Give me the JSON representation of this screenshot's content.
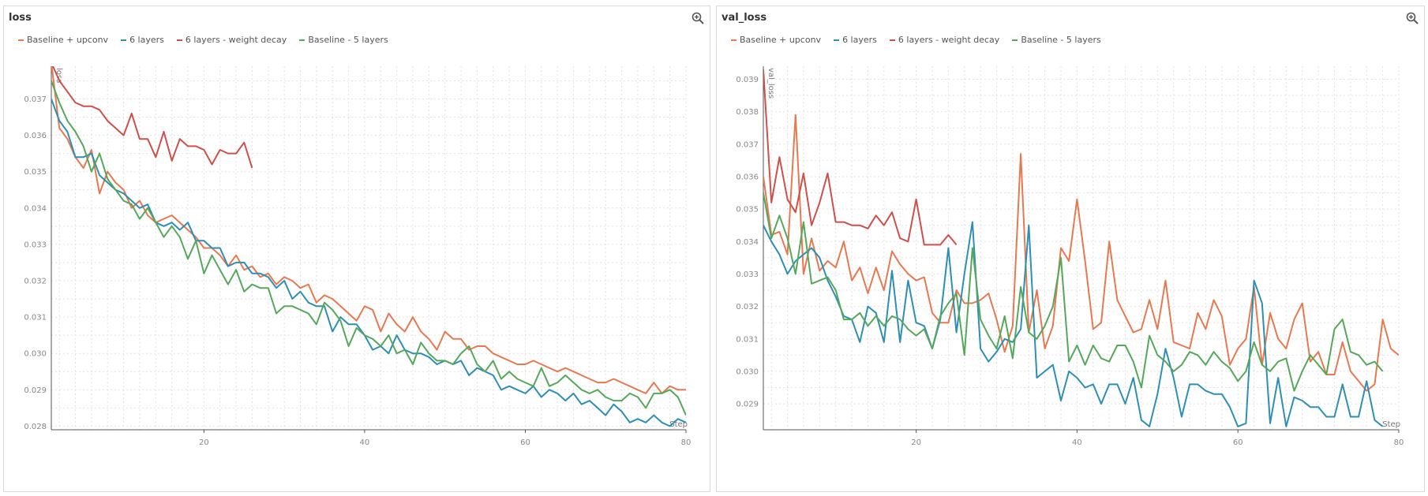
{
  "colors": {
    "baseline_upconv": "#e8784f",
    "six_layers": "#2d8fb4",
    "six_layers_wd": "#cf4f4a",
    "baseline_5": "#55a85a",
    "grid": "#e2e2e2",
    "axis": "#555555"
  },
  "icons": {
    "zoom": "zoom-in-icon"
  },
  "chart_data": [
    {
      "type": "line",
      "title": "loss",
      "ylabel": "loss",
      "xlabel": "Step",
      "xlim": [
        1,
        80
      ],
      "ylim": [
        0.0279,
        0.0379
      ],
      "xticks": [
        20,
        40,
        60,
        80
      ],
      "xtick_labels": [
        "20",
        "40",
        "60",
        "80"
      ],
      "yticks": [
        0.028,
        0.029,
        0.03,
        0.031,
        0.032,
        0.033,
        0.034,
        0.035,
        0.036,
        0.037
      ],
      "ytick_labels": [
        "0.028",
        "0.029",
        "0.030",
        "0.031",
        "0.032",
        "0.033",
        "0.034",
        "0.035",
        "0.036",
        "0.037"
      ],
      "series": [
        {
          "name": "Baseline + upconv",
          "color": "#e8784f",
          "x_start": 1,
          "values": [
            0.038,
            0.0362,
            0.0359,
            0.0354,
            0.0351,
            0.0356,
            0.0344,
            0.035,
            0.0347,
            0.0345,
            0.034,
            0.0342,
            0.0338,
            0.0336,
            0.0337,
            0.0338,
            0.0336,
            0.0334,
            0.0332,
            0.0329,
            0.0329,
            0.0327,
            0.0324,
            0.0327,
            0.0323,
            0.0324,
            0.0321,
            0.0322,
            0.0319,
            0.0321,
            0.032,
            0.0318,
            0.0319,
            0.0314,
            0.0316,
            0.0315,
            0.0313,
            0.0311,
            0.0309,
            0.0313,
            0.0312,
            0.0306,
            0.0311,
            0.0308,
            0.0306,
            0.031,
            0.0306,
            0.0304,
            0.0301,
            0.0306,
            0.0304,
            0.0304,
            0.0301,
            0.0302,
            0.0302,
            0.03,
            0.0299,
            0.0298,
            0.0297,
            0.0297,
            0.0298,
            0.0297,
            0.0296,
            0.0295,
            0.0296,
            0.0295,
            0.0294,
            0.0293,
            0.0292,
            0.0292,
            0.0293,
            0.0292,
            0.0291,
            0.029,
            0.0289,
            0.0292,
            0.0289,
            0.0291,
            0.029,
            0.029
          ]
        },
        {
          "name": "6 layers",
          "color": "#2d8fb4",
          "x_start": 1,
          "values": [
            0.037,
            0.0364,
            0.0361,
            0.0354,
            0.0354,
            0.0355,
            0.0349,
            0.0347,
            0.0345,
            0.0344,
            0.0342,
            0.034,
            0.0341,
            0.0336,
            0.0335,
            0.0336,
            0.0334,
            0.0336,
            0.0331,
            0.0331,
            0.0329,
            0.0329,
            0.0324,
            0.0325,
            0.0325,
            0.0322,
            0.0322,
            0.0321,
            0.0318,
            0.032,
            0.0315,
            0.0317,
            0.0314,
            0.0313,
            0.0313,
            0.0306,
            0.031,
            0.0308,
            0.0308,
            0.0305,
            0.0301,
            0.0302,
            0.03,
            0.0305,
            0.0301,
            0.03,
            0.03,
            0.0299,
            0.0297,
            0.0298,
            0.0297,
            0.0298,
            0.0294,
            0.0296,
            0.0295,
            0.0294,
            0.029,
            0.0291,
            0.029,
            0.0289,
            0.0291,
            0.0288,
            0.029,
            0.0289,
            0.0287,
            0.0289,
            0.0286,
            0.0287,
            0.0285,
            0.0283,
            0.0286,
            0.0284,
            0.0281,
            0.0282,
            0.0281,
            0.0283,
            0.0281,
            0.028,
            0.0282,
            0.0281
          ]
        },
        {
          "name": "6 layers - weight decay",
          "color": "#cf4f4a",
          "x_start": 1,
          "values": [
            0.038,
            0.0375,
            0.0372,
            0.0369,
            0.0368,
            0.0368,
            0.0367,
            0.0364,
            0.0362,
            0.036,
            0.0366,
            0.0359,
            0.0359,
            0.0354,
            0.0361,
            0.0353,
            0.0359,
            0.0357,
            0.0357,
            0.0356,
            0.0352,
            0.0356,
            0.0355,
            0.0355,
            0.0358,
            0.0351
          ]
        },
        {
          "name": "Baseline - 5 layers",
          "color": "#55a85a",
          "x_start": 1,
          "values": [
            0.0375,
            0.0369,
            0.0364,
            0.0361,
            0.0357,
            0.035,
            0.0355,
            0.0348,
            0.0345,
            0.0342,
            0.0341,
            0.0337,
            0.034,
            0.0336,
            0.0332,
            0.0335,
            0.0332,
            0.0326,
            0.0331,
            0.0322,
            0.0327,
            0.0323,
            0.0319,
            0.0323,
            0.0317,
            0.0319,
            0.0318,
            0.0318,
            0.0311,
            0.0313,
            0.0313,
            0.0312,
            0.0311,
            0.0308,
            0.0314,
            0.0312,
            0.0309,
            0.0302,
            0.0307,
            0.0305,
            0.0304,
            0.0302,
            0.0305,
            0.03,
            0.0301,
            0.0297,
            0.0303,
            0.03,
            0.0298,
            0.0298,
            0.0297,
            0.03,
            0.0302,
            0.0297,
            0.0295,
            0.0298,
            0.0293,
            0.0295,
            0.0293,
            0.0292,
            0.0291,
            0.0296,
            0.0291,
            0.0292,
            0.0294,
            0.0292,
            0.029,
            0.0289,
            0.029,
            0.0288,
            0.0287,
            0.0287,
            0.0289,
            0.0288,
            0.0285,
            0.0289,
            0.0289,
            0.029,
            0.0288,
            0.0283
          ]
        }
      ]
    },
    {
      "type": "line",
      "title": "val_loss",
      "ylabel": "val_loss",
      "xlabel": "Step",
      "xlim": [
        1,
        80
      ],
      "ylim": [
        0.0282,
        0.0394
      ],
      "xticks": [
        20,
        40,
        60,
        80
      ],
      "xtick_labels": [
        "20",
        "40",
        "60",
        "80"
      ],
      "yticks": [
        0.029,
        0.03,
        0.031,
        0.032,
        0.033,
        0.034,
        0.035,
        0.036,
        0.037,
        0.038,
        0.039
      ],
      "ytick_labels": [
        "0.029",
        "0.030",
        "0.031",
        "0.032",
        "0.033",
        "0.034",
        "0.035",
        "0.036",
        "0.037",
        "0.038",
        "0.039"
      ],
      "series": [
        {
          "name": "Baseline + upconv",
          "color": "#e8784f",
          "x_start": 1,
          "values": [
            0.036,
            0.0342,
            0.0343,
            0.0336,
            0.0379,
            0.033,
            0.0341,
            0.0331,
            0.0334,
            0.0332,
            0.034,
            0.0328,
            0.0332,
            0.0324,
            0.0332,
            0.0325,
            0.0337,
            0.0333,
            0.033,
            0.0328,
            0.0329,
            0.0318,
            0.0315,
            0.0315,
            0.0325,
            0.0321,
            0.0321,
            0.0322,
            0.0324,
            0.0316,
            0.0306,
            0.0314,
            0.0367,
            0.0312,
            0.0325,
            0.0307,
            0.0314,
            0.0338,
            0.0334,
            0.0353,
            0.0334,
            0.0313,
            0.0315,
            0.034,
            0.0322,
            0.0317,
            0.0312,
            0.0313,
            0.0322,
            0.0313,
            0.0328,
            0.0309,
            0.0308,
            0.0307,
            0.0318,
            0.0313,
            0.0322,
            0.0317,
            0.0302,
            0.0307,
            0.031,
            0.0326,
            0.0302,
            0.0318,
            0.031,
            0.0307,
            0.0316,
            0.0321,
            0.0303,
            0.0306,
            0.0299,
            0.0299,
            0.0309,
            0.03,
            0.0297,
            0.0294,
            0.0296,
            0.0316,
            0.0307,
            0.0305
          ]
        },
        {
          "name": "6 layers",
          "color": "#2d8fb4",
          "x_start": 1,
          "values": [
            0.0345,
            0.034,
            0.0336,
            0.033,
            0.0334,
            0.0336,
            0.0338,
            0.0335,
            0.0328,
            0.0323,
            0.0317,
            0.0316,
            0.0309,
            0.032,
            0.0318,
            0.0309,
            0.0331,
            0.0309,
            0.0328,
            0.0315,
            0.0314,
            0.0307,
            0.0316,
            0.0338,
            0.0312,
            0.033,
            0.0346,
            0.0307,
            0.0303,
            0.0306,
            0.031,
            0.0309,
            0.0313,
            0.0345,
            0.0298,
            0.03,
            0.0302,
            0.0291,
            0.03,
            0.0298,
            0.0295,
            0.0296,
            0.029,
            0.0296,
            0.0296,
            0.029,
            0.0298,
            0.0285,
            0.0283,
            0.0293,
            0.0307,
            0.0298,
            0.0286,
            0.0296,
            0.0296,
            0.0294,
            0.0293,
            0.0293,
            0.0289,
            0.0283,
            0.0284,
            0.0328,
            0.0321,
            0.0284,
            0.0298,
            0.0283,
            0.0292,
            0.0291,
            0.0289,
            0.0289,
            0.0286,
            0.0286,
            0.0296,
            0.0286,
            0.0286,
            0.0297,
            0.0285,
            0.0283
          ]
        },
        {
          "name": "6 layers - weight decay",
          "color": "#cf4f4a",
          "x_start": 1,
          "values": [
            0.0393,
            0.0352,
            0.0366,
            0.0353,
            0.0349,
            0.0361,
            0.0345,
            0.0352,
            0.0361,
            0.0346,
            0.0346,
            0.0345,
            0.0345,
            0.0344,
            0.0348,
            0.0345,
            0.0349,
            0.0341,
            0.034,
            0.0353,
            0.0339,
            0.0339,
            0.0339,
            0.0342,
            0.0339
          ]
        },
        {
          "name": "Baseline - 5 layers",
          "color": "#55a85a",
          "x_start": 1,
          "values": [
            0.0355,
            0.0341,
            0.0348,
            0.0341,
            0.033,
            0.0346,
            0.0327,
            0.0328,
            0.0329,
            0.0325,
            0.0316,
            0.0316,
            0.0318,
            0.0314,
            0.0317,
            0.0314,
            0.0317,
            0.0316,
            0.0313,
            0.0311,
            0.0313,
            0.0307,
            0.0317,
            0.0321,
            0.0324,
            0.0305,
            0.0338,
            0.0316,
            0.0311,
            0.0307,
            0.0317,
            0.0304,
            0.0326,
            0.0312,
            0.031,
            0.0314,
            0.032,
            0.0335,
            0.0303,
            0.0308,
            0.0302,
            0.0308,
            0.0304,
            0.0303,
            0.0308,
            0.0308,
            0.0303,
            0.0295,
            0.0311,
            0.0305,
            0.0303,
            0.03,
            0.0302,
            0.0306,
            0.0305,
            0.0302,
            0.0306,
            0.0303,
            0.0301,
            0.0297,
            0.03,
            0.0309,
            0.0302,
            0.03,
            0.0303,
            0.0304,
            0.0294,
            0.03,
            0.0305,
            0.0302,
            0.0299,
            0.0313,
            0.0316,
            0.0306,
            0.0305,
            0.0302,
            0.0303,
            0.03
          ]
        }
      ]
    }
  ]
}
